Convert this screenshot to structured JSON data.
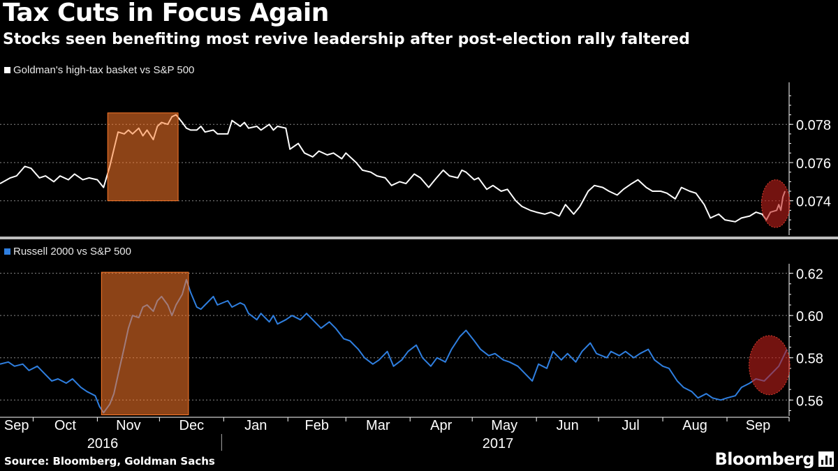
{
  "title": "Tax Cuts in Focus Again",
  "subtitle": "Stocks seen benefiting most revive leadership after post-election rally faltered",
  "source": "Source: Bloomberg, Goldman Sachs",
  "brand": "Bloomberg",
  "colors": {
    "background": "#000000",
    "series_top": "#ffffff",
    "series_bottom": "#2f7fe0",
    "highlight_box": "#ff7a2a",
    "highlight_circle": "#c0201a",
    "grid": "#8a8a8a"
  },
  "months": [
    "Sep",
    "Oct",
    "Nov",
    "Dec",
    "Jan",
    "Feb",
    "Mar",
    "Apr",
    "May",
    "Jun",
    "Jul",
    "Aug",
    "Sep"
  ],
  "years": [
    "2016",
    "2017"
  ],
  "chart_data": [
    {
      "type": "line",
      "series": [
        {
          "name": "Goldman's high-tax basket vs S&P 500"
        }
      ],
      "legend": "top-left",
      "grid": true,
      "ylim": [
        0.0722,
        0.0802
      ],
      "yticks": [
        0.074,
        0.076,
        0.078
      ],
      "ytick_labels": [
        "0.074",
        "0.076",
        "0.078"
      ],
      "x_range": [
        "2016-09-15",
        "2017-09-30"
      ],
      "points": [
        [
          "2016-09-15",
          0.0749
        ],
        [
          "2016-09-20",
          0.0752
        ],
        [
          "2016-09-23",
          0.0753
        ],
        [
          "2016-09-27",
          0.0758
        ],
        [
          "2016-09-30",
          0.0757
        ],
        [
          "2016-10-04",
          0.0752
        ],
        [
          "2016-10-07",
          0.0753
        ],
        [
          "2016-10-11",
          0.075
        ],
        [
          "2016-10-14",
          0.0753
        ],
        [
          "2016-10-18",
          0.0751
        ],
        [
          "2016-10-21",
          0.0754
        ],
        [
          "2016-10-25",
          0.0751
        ],
        [
          "2016-10-28",
          0.0752
        ],
        [
          "2016-11-01",
          0.0751
        ],
        [
          "2016-11-04",
          0.0747
        ],
        [
          "2016-11-07",
          0.0758
        ],
        [
          "2016-11-09",
          0.0767
        ],
        [
          "2016-11-11",
          0.0776
        ],
        [
          "2016-11-14",
          0.0775
        ],
        [
          "2016-11-16",
          0.0777
        ],
        [
          "2016-11-18",
          0.0775
        ],
        [
          "2016-11-21",
          0.0778
        ],
        [
          "2016-11-23",
          0.0774
        ],
        [
          "2016-11-25",
          0.0777
        ],
        [
          "2016-11-28",
          0.0772
        ],
        [
          "2016-11-30",
          0.0779
        ],
        [
          "2016-12-02",
          0.0781
        ],
        [
          "2016-12-05",
          0.078
        ],
        [
          "2016-12-07",
          0.0784
        ],
        [
          "2016-12-09",
          0.0785
        ],
        [
          "2016-12-12",
          0.0781
        ],
        [
          "2016-12-14",
          0.0778
        ],
        [
          "2016-12-16",
          0.0777
        ],
        [
          "2016-12-19",
          0.0777
        ],
        [
          "2016-12-21",
          0.0779
        ],
        [
          "2016-12-23",
          0.0776
        ],
        [
          "2016-12-27",
          0.0777
        ],
        [
          "2016-12-29",
          0.0775
        ],
        [
          "2017-01-03",
          0.0775
        ],
        [
          "2017-01-05",
          0.0782
        ],
        [
          "2017-01-09",
          0.0779
        ],
        [
          "2017-01-11",
          0.0781
        ],
        [
          "2017-01-13",
          0.0778
        ],
        [
          "2017-01-17",
          0.0779
        ],
        [
          "2017-01-19",
          0.0777
        ],
        [
          "2017-01-23",
          0.078
        ],
        [
          "2017-01-25",
          0.0777
        ],
        [
          "2017-01-27",
          0.0779
        ],
        [
          "2017-01-31",
          0.0778
        ],
        [
          "2017-02-02",
          0.0767
        ],
        [
          "2017-02-06",
          0.077
        ],
        [
          "2017-02-09",
          0.0765
        ],
        [
          "2017-02-13",
          0.0763
        ],
        [
          "2017-02-16",
          0.0766
        ],
        [
          "2017-02-20",
          0.0764
        ],
        [
          "2017-02-23",
          0.0765
        ],
        [
          "2017-02-27",
          0.0762
        ],
        [
          "2017-03-01",
          0.0765
        ],
        [
          "2017-03-06",
          0.076
        ],
        [
          "2017-03-09",
          0.0756
        ],
        [
          "2017-03-13",
          0.0755
        ],
        [
          "2017-03-16",
          0.0753
        ],
        [
          "2017-03-20",
          0.0752
        ],
        [
          "2017-03-23",
          0.0748
        ],
        [
          "2017-03-27",
          0.075
        ],
        [
          "2017-03-30",
          0.0749
        ],
        [
          "2017-04-03",
          0.0754
        ],
        [
          "2017-04-06",
          0.0752
        ],
        [
          "2017-04-10",
          0.0747
        ],
        [
          "2017-04-13",
          0.0751
        ],
        [
          "2017-04-17",
          0.0756
        ],
        [
          "2017-04-20",
          0.0753
        ],
        [
          "2017-04-24",
          0.0752
        ],
        [
          "2017-04-26",
          0.0756
        ],
        [
          "2017-04-28",
          0.0755
        ],
        [
          "2017-05-02",
          0.0751
        ],
        [
          "2017-05-04",
          0.0752
        ],
        [
          "2017-05-08",
          0.0746
        ],
        [
          "2017-05-11",
          0.0748
        ],
        [
          "2017-05-15",
          0.0745
        ],
        [
          "2017-05-18",
          0.0746
        ],
        [
          "2017-05-22",
          0.074
        ],
        [
          "2017-05-25",
          0.0737
        ],
        [
          "2017-05-29",
          0.0735
        ],
        [
          "2017-06-01",
          0.0734
        ],
        [
          "2017-06-05",
          0.0733
        ],
        [
          "2017-06-08",
          0.0734
        ],
        [
          "2017-06-12",
          0.0732
        ],
        [
          "2017-06-15",
          0.0738
        ],
        [
          "2017-06-19",
          0.0733
        ],
        [
          "2017-06-22",
          0.0737
        ],
        [
          "2017-06-26",
          0.0745
        ],
        [
          "2017-06-29",
          0.0748
        ],
        [
          "2017-07-03",
          0.0747
        ],
        [
          "2017-07-06",
          0.0745
        ],
        [
          "2017-07-10",
          0.0743
        ],
        [
          "2017-07-13",
          0.0746
        ],
        [
          "2017-07-17",
          0.0749
        ],
        [
          "2017-07-20",
          0.0751
        ],
        [
          "2017-07-24",
          0.0747
        ],
        [
          "2017-07-27",
          0.0745
        ],
        [
          "2017-07-31",
          0.0745
        ],
        [
          "2017-08-03",
          0.0744
        ],
        [
          "2017-08-07",
          0.0741
        ],
        [
          "2017-08-10",
          0.0747
        ],
        [
          "2017-08-14",
          0.0745
        ],
        [
          "2017-08-17",
          0.0744
        ],
        [
          "2017-08-21",
          0.0738
        ],
        [
          "2017-08-24",
          0.0731
        ],
        [
          "2017-08-28",
          0.0733
        ],
        [
          "2017-08-31",
          0.073
        ],
        [
          "2017-09-05",
          0.0729
        ],
        [
          "2017-09-08",
          0.0731
        ],
        [
          "2017-09-12",
          0.0732
        ],
        [
          "2017-09-15",
          0.0734
        ],
        [
          "2017-09-18",
          0.0733
        ],
        [
          "2017-09-20",
          0.073
        ],
        [
          "2017-09-22",
          0.0734
        ],
        [
          "2017-09-25",
          0.0735
        ],
        [
          "2017-09-26",
          0.0738
        ],
        [
          "2017-09-27",
          0.0735
        ],
        [
          "2017-09-28",
          0.0742
        ],
        [
          "2017-09-29",
          0.0745
        ]
      ],
      "highlights": [
        {
          "shape": "box",
          "x": [
            "2016-11-06",
            "2016-12-10"
          ],
          "y": [
            0.074,
            0.0786
          ]
        },
        {
          "shape": "circle",
          "x": [
            "2017-09-19",
            "2017-09-30"
          ],
          "y": [
            0.0726,
            0.0751
          ]
        }
      ]
    },
    {
      "type": "line",
      "series": [
        {
          "name": "Russell 2000 vs S&P 500"
        }
      ],
      "legend": "top-left",
      "grid": true,
      "ylim": [
        0.5525,
        0.6245
      ],
      "yticks": [
        0.56,
        0.58,
        0.6,
        0.62
      ],
      "ytick_labels": [
        "0.56",
        "0.58",
        "0.60",
        "0.62"
      ],
      "x_range": [
        "2016-09-15",
        "2017-09-30"
      ],
      "points": [
        [
          "2016-09-15",
          0.577
        ],
        [
          "2016-09-19",
          0.578
        ],
        [
          "2016-09-22",
          0.576
        ],
        [
          "2016-09-26",
          0.577
        ],
        [
          "2016-09-29",
          0.574
        ],
        [
          "2016-10-03",
          0.576
        ],
        [
          "2016-10-06",
          0.573
        ],
        [
          "2016-10-10",
          0.569
        ],
        [
          "2016-10-13",
          0.57
        ],
        [
          "2016-10-17",
          0.568
        ],
        [
          "2016-10-20",
          0.57
        ],
        [
          "2016-10-24",
          0.566
        ],
        [
          "2016-10-27",
          0.564
        ],
        [
          "2016-10-31",
          0.562
        ],
        [
          "2016-11-02",
          0.557
        ],
        [
          "2016-11-04",
          0.554
        ],
        [
          "2016-11-07",
          0.558
        ],
        [
          "2016-11-09",
          0.563
        ],
        [
          "2016-11-11",
          0.572
        ],
        [
          "2016-11-14",
          0.585
        ],
        [
          "2016-11-16",
          0.594
        ],
        [
          "2016-11-18",
          0.6
        ],
        [
          "2016-11-21",
          0.599
        ],
        [
          "2016-11-23",
          0.604
        ],
        [
          "2016-11-25",
          0.605
        ],
        [
          "2016-11-28",
          0.602
        ],
        [
          "2016-11-30",
          0.607
        ],
        [
          "2016-12-02",
          0.609
        ],
        [
          "2016-12-05",
          0.605
        ],
        [
          "2016-12-07",
          0.6
        ],
        [
          "2016-12-09",
          0.605
        ],
        [
          "2016-12-12",
          0.61
        ],
        [
          "2016-12-14",
          0.617
        ],
        [
          "2016-12-16",
          0.611
        ],
        [
          "2016-12-19",
          0.604
        ],
        [
          "2016-12-21",
          0.603
        ],
        [
          "2016-12-23",
          0.605
        ],
        [
          "2016-12-27",
          0.609
        ],
        [
          "2016-12-29",
          0.605
        ],
        [
          "2017-01-03",
          0.607
        ],
        [
          "2017-01-05",
          0.604
        ],
        [
          "2017-01-09",
          0.606
        ],
        [
          "2017-01-11",
          0.605
        ],
        [
          "2017-01-13",
          0.601
        ],
        [
          "2017-01-17",
          0.598
        ],
        [
          "2017-01-19",
          0.601
        ],
        [
          "2017-01-23",
          0.597
        ],
        [
          "2017-01-25",
          0.6
        ],
        [
          "2017-01-27",
          0.596
        ],
        [
          "2017-01-31",
          0.598
        ],
        [
          "2017-02-03",
          0.6
        ],
        [
          "2017-02-07",
          0.598
        ],
        [
          "2017-02-10",
          0.601
        ],
        [
          "2017-02-14",
          0.597
        ],
        [
          "2017-02-17",
          0.594
        ],
        [
          "2017-02-21",
          0.597
        ],
        [
          "2017-02-24",
          0.594
        ],
        [
          "2017-02-28",
          0.589
        ],
        [
          "2017-03-03",
          0.588
        ],
        [
          "2017-03-07",
          0.584
        ],
        [
          "2017-03-10",
          0.58
        ],
        [
          "2017-03-14",
          0.577
        ],
        [
          "2017-03-17",
          0.579
        ],
        [
          "2017-03-21",
          0.583
        ],
        [
          "2017-03-24",
          0.576
        ],
        [
          "2017-03-28",
          0.579
        ],
        [
          "2017-03-31",
          0.583
        ],
        [
          "2017-04-04",
          0.586
        ],
        [
          "2017-04-07",
          0.58
        ],
        [
          "2017-04-11",
          0.576
        ],
        [
          "2017-04-14",
          0.58
        ],
        [
          "2017-04-18",
          0.578
        ],
        [
          "2017-04-21",
          0.584
        ],
        [
          "2017-04-25",
          0.59
        ],
        [
          "2017-04-28",
          0.593
        ],
        [
          "2017-05-02",
          0.588
        ],
        [
          "2017-05-05",
          0.584
        ],
        [
          "2017-05-09",
          0.581
        ],
        [
          "2017-05-12",
          0.582
        ],
        [
          "2017-05-16",
          0.579
        ],
        [
          "2017-05-19",
          0.578
        ],
        [
          "2017-05-23",
          0.576
        ],
        [
          "2017-05-26",
          0.573
        ],
        [
          "2017-05-30",
          0.569
        ],
        [
          "2017-06-02",
          0.577
        ],
        [
          "2017-06-06",
          0.575
        ],
        [
          "2017-06-09",
          0.583
        ],
        [
          "2017-06-13",
          0.579
        ],
        [
          "2017-06-16",
          0.582
        ],
        [
          "2017-06-20",
          0.578
        ],
        [
          "2017-06-23",
          0.583
        ],
        [
          "2017-06-27",
          0.587
        ],
        [
          "2017-06-30",
          0.582
        ],
        [
          "2017-07-05",
          0.58
        ],
        [
          "2017-07-07",
          0.583
        ],
        [
          "2017-07-11",
          0.581
        ],
        [
          "2017-07-14",
          0.583
        ],
        [
          "2017-07-18",
          0.58
        ],
        [
          "2017-07-21",
          0.582
        ],
        [
          "2017-07-25",
          0.584
        ],
        [
          "2017-07-28",
          0.579
        ],
        [
          "2017-08-01",
          0.576
        ],
        [
          "2017-08-04",
          0.575
        ],
        [
          "2017-08-08",
          0.569
        ],
        [
          "2017-08-11",
          0.566
        ],
        [
          "2017-08-15",
          0.564
        ],
        [
          "2017-08-18",
          0.561
        ],
        [
          "2017-08-22",
          0.563
        ],
        [
          "2017-08-25",
          0.561
        ],
        [
          "2017-08-29",
          0.56
        ],
        [
          "2017-09-01",
          0.561
        ],
        [
          "2017-09-05",
          0.562
        ],
        [
          "2017-09-08",
          0.566
        ],
        [
          "2017-09-12",
          0.568
        ],
        [
          "2017-09-15",
          0.57
        ],
        [
          "2017-09-19",
          0.569
        ],
        [
          "2017-09-22",
          0.572
        ],
        [
          "2017-09-26",
          0.576
        ],
        [
          "2017-09-28",
          0.58
        ],
        [
          "2017-09-30",
          0.584
        ]
      ],
      "highlights": [
        {
          "shape": "box",
          "x": [
            "2016-11-03",
            "2016-12-15"
          ],
          "y": [
            0.553,
            0.6205
          ]
        },
        {
          "shape": "circle",
          "x": [
            "2017-09-13",
            "2017-09-30"
          ],
          "y": [
            0.5625,
            0.5905
          ]
        }
      ]
    }
  ]
}
